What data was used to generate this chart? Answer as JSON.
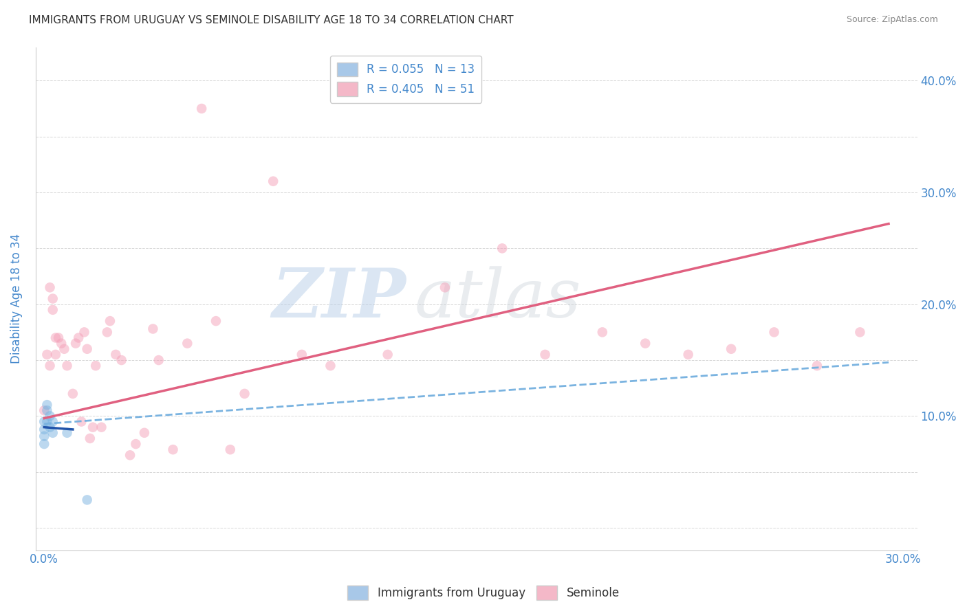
{
  "title": "IMMIGRANTS FROM URUGUAY VS SEMINOLE DISABILITY AGE 18 TO 34 CORRELATION CHART",
  "source": "Source: ZipAtlas.com",
  "ylabel_left": "Disability Age 18 to 34",
  "xlim": [
    -0.003,
    0.305
  ],
  "ylim": [
    -0.02,
    0.43
  ],
  "watermark_zip": "ZIP",
  "watermark_atlas": "atlas",
  "uruguay_scatter_x": [
    0.0,
    0.0,
    0.0,
    0.0,
    0.001,
    0.001,
    0.001,
    0.002,
    0.002,
    0.003,
    0.003,
    0.008,
    0.015
  ],
  "uruguay_scatter_y": [
    0.075,
    0.082,
    0.088,
    0.095,
    0.095,
    0.105,
    0.11,
    0.09,
    0.1,
    0.085,
    0.095,
    0.085,
    0.025
  ],
  "seminole_scatter_x": [
    0.0,
    0.001,
    0.002,
    0.002,
    0.003,
    0.003,
    0.004,
    0.004,
    0.005,
    0.006,
    0.007,
    0.008,
    0.01,
    0.011,
    0.012,
    0.013,
    0.014,
    0.015,
    0.016,
    0.017,
    0.018,
    0.02,
    0.022,
    0.023,
    0.025,
    0.027,
    0.03,
    0.032,
    0.035,
    0.038,
    0.04,
    0.045,
    0.05,
    0.055,
    0.06,
    0.065,
    0.07,
    0.08,
    0.09,
    0.1,
    0.12,
    0.14,
    0.16,
    0.175,
    0.195,
    0.21,
    0.225,
    0.24,
    0.255,
    0.27,
    0.285
  ],
  "seminole_scatter_y": [
    0.105,
    0.155,
    0.145,
    0.215,
    0.205,
    0.195,
    0.17,
    0.155,
    0.17,
    0.165,
    0.16,
    0.145,
    0.12,
    0.165,
    0.17,
    0.095,
    0.175,
    0.16,
    0.08,
    0.09,
    0.145,
    0.09,
    0.175,
    0.185,
    0.155,
    0.15,
    0.065,
    0.075,
    0.085,
    0.178,
    0.15,
    0.07,
    0.165,
    0.375,
    0.185,
    0.07,
    0.12,
    0.31,
    0.155,
    0.145,
    0.155,
    0.215,
    0.25,
    0.155,
    0.175,
    0.165,
    0.155,
    0.16,
    0.175,
    0.145,
    0.175
  ],
  "uruguay_solid_line_x": [
    0.0,
    0.01
  ],
  "uruguay_solid_line_y": [
    0.09,
    0.088
  ],
  "uruguay_dash_line_x": [
    0.0,
    0.295
  ],
  "uruguay_dash_line_y": [
    0.093,
    0.148
  ],
  "seminole_line_x": [
    0.0,
    0.295
  ],
  "seminole_line_y": [
    0.098,
    0.272
  ],
  "scatter_size": 110,
  "scatter_alpha": 0.5,
  "uruguay_color": "#7ab3e0",
  "seminole_color": "#f4a0b8",
  "uruguay_solid_color": "#2255aa",
  "uruguay_dash_color": "#7ab3e0",
  "seminole_line_color": "#e06080",
  "bg_color": "#ffffff",
  "grid_color": "#cccccc",
  "title_color": "#333333",
  "axis_label_color": "#4488cc",
  "source_color": "#888888"
}
